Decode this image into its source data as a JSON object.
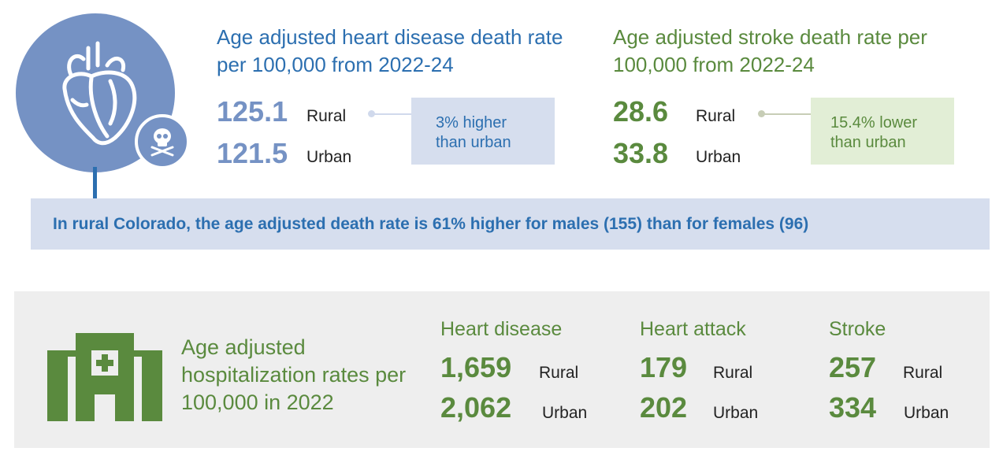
{
  "heart_section": {
    "title": "Age adjusted heart disease death rate per 100,000 from 2022-24",
    "rural_value": "125.1",
    "rural_label": "Rural",
    "urban_value": "121.5",
    "urban_label": "Urban",
    "comparison": "3% higher than urban"
  },
  "stroke_section": {
    "title": "Age adjusted stroke death rate per 100,000 from 2022-24",
    "rural_value": "28.6",
    "rural_label": "Rural",
    "urban_value": "33.8",
    "urban_label": "Urban",
    "comparison": "15.4% lower than urban"
  },
  "banner": {
    "text": "In rural Colorado, the age adjusted death rate is 61% higher for males (155) than for females (96)"
  },
  "hospitalization": {
    "title": "Age adjusted hospitalization rates per 100,000 in 2022",
    "columns": [
      {
        "heading": "Heart disease",
        "rural_value": "1,659",
        "rural_label": "Rural",
        "urban_value": "2,062",
        "urban_label": "Urban"
      },
      {
        "heading": "Heart attack",
        "rural_value": "179",
        "rural_label": "Rural",
        "urban_value": "202",
        "urban_label": "Urban"
      },
      {
        "heading": "Stroke",
        "rural_value": "257",
        "rural_label": "Rural",
        "urban_value": "334",
        "urban_label": "Urban"
      }
    ]
  },
  "icons": {
    "heart": "anatomical-heart-icon",
    "skull": "skull-crossbones-icon",
    "hospital": "hospital-building-icon"
  },
  "colors": {
    "blue_accent": "#2c6fb0",
    "blue_muted": "#7592c4",
    "green_accent": "#5a8a3e",
    "blue_box": "#d6deee",
    "green_box": "#e2eed6",
    "panel_gray": "#eeeeee"
  }
}
